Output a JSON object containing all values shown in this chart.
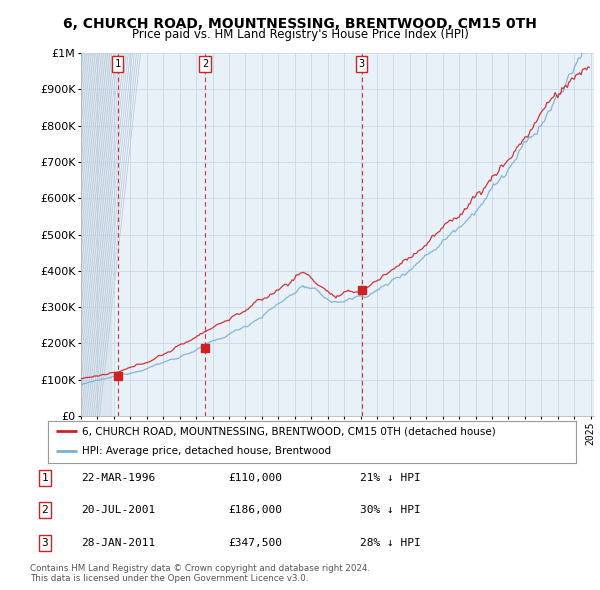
{
  "title": "6, CHURCH ROAD, MOUNTNESSING, BRENTWOOD, CM15 0TH",
  "subtitle": "Price paid vs. HM Land Registry's House Price Index (HPI)",
  "ylabel_ticks": [
    "£0",
    "£100K",
    "£200K",
    "£300K",
    "£400K",
    "£500K",
    "£600K",
    "£700K",
    "£800K",
    "£900K",
    "£1M"
  ],
  "ytick_values": [
    0,
    100000,
    200000,
    300000,
    400000,
    500000,
    600000,
    700000,
    800000,
    900000,
    1000000
  ],
  "xlim_start": 1994.0,
  "xlim_end": 2025.0,
  "ylim": [
    0,
    1000000
  ],
  "hpi_color": "#7bafd4",
  "price_color": "#cc2222",
  "grid_color": "#c8d8e8",
  "bg_color": "#e8f0f8",
  "hatch_color": "#d0dce8",
  "transactions": [
    {
      "year": 1996.22,
      "price": 110000,
      "label": "1"
    },
    {
      "year": 2001.55,
      "price": 186000,
      "label": "2"
    },
    {
      "year": 2011.07,
      "price": 347500,
      "label": "3"
    }
  ],
  "legend_line1": "6, CHURCH ROAD, MOUNTNESSING, BRENTWOOD, CM15 0TH (detached house)",
  "legend_line2": "HPI: Average price, detached house, Brentwood",
  "table_rows": [
    {
      "num": "1",
      "date": "22-MAR-1996",
      "price": "£110,000",
      "note": "21% ↓ HPI"
    },
    {
      "num": "2",
      "date": "20-JUL-2001",
      "price": "£186,000",
      "note": "30% ↓ HPI"
    },
    {
      "num": "3",
      "date": "28-JAN-2011",
      "price": "£347,500",
      "note": "28% ↓ HPI"
    }
  ],
  "footnote": "Contains HM Land Registry data © Crown copyright and database right 2024.\nThis data is licensed under the Open Government Licence v3.0."
}
